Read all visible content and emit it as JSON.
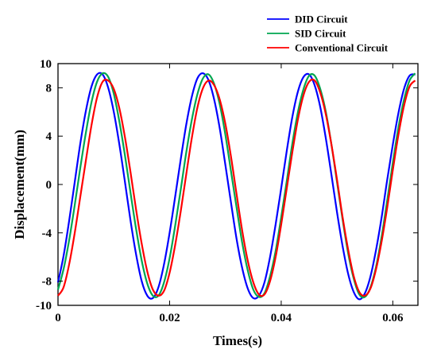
{
  "chart_data": {
    "type": "line",
    "xlabel": "Times(s)",
    "ylabel": "Displacement(mm)",
    "xlim": [
      0,
      0.0645
    ],
    "ylim": [
      -10,
      10
    ],
    "xticks": [
      0,
      0.02,
      0.04,
      0.06
    ],
    "xtick_labels": [
      "0",
      "0.02",
      "0.04",
      "0.06"
    ],
    "yticks": [
      -10,
      -8,
      -4,
      0,
      4,
      8,
      10
    ],
    "ytick_labels": [
      "-10",
      "-8",
      "-4",
      "0",
      "4",
      "8",
      "10"
    ],
    "grid": false,
    "legend_position": "top-right",
    "x": [
      0,
      0.001,
      0.002,
      0.003,
      0.004,
      0.005,
      0.006,
      0.007,
      0.008,
      0.009,
      0.01,
      0.011,
      0.012,
      0.013,
      0.014,
      0.015,
      0.016,
      0.017,
      0.018,
      0.019,
      0.02,
      0.021,
      0.022,
      0.023,
      0.024,
      0.025,
      0.026,
      0.027,
      0.028,
      0.029,
      0.03,
      0.031,
      0.032,
      0.033,
      0.034,
      0.035,
      0.036,
      0.037,
      0.038,
      0.039,
      0.04,
      0.041,
      0.042,
      0.043,
      0.044,
      0.045,
      0.046,
      0.047,
      0.048,
      0.049,
      0.05,
      0.051,
      0.052,
      0.053,
      0.054,
      0.055,
      0.056,
      0.057,
      0.058,
      0.059,
      0.06,
      0.061,
      0.062,
      0.063,
      0.064
    ],
    "series": [
      {
        "name": "DID Circuit",
        "color": "#0000ff",
        "values": [
          -8.1,
          -5.9,
          -3.0,
          0.2,
          3.4,
          6.1,
          8.1,
          9.1,
          9.1,
          8.0,
          6.0,
          3.3,
          0.2,
          -3.0,
          -5.8,
          -8.0,
          -9.2,
          -9.4,
          -8.5,
          -6.6,
          -4.0,
          -1.0,
          2.1,
          5.0,
          7.3,
          8.8,
          9.2,
          8.6,
          7.0,
          4.6,
          1.6,
          -1.5,
          -4.5,
          -6.9,
          -8.6,
          -9.4,
          -9.2,
          -8.1,
          -6.0,
          -3.3,
          -0.3,
          2.8,
          5.6,
          7.7,
          8.9,
          9.1,
          8.2,
          6.4,
          3.8,
          0.8,
          -2.3,
          -5.1,
          -7.4,
          -8.9,
          -9.5,
          -9.0,
          -7.6,
          -5.4,
          -2.7,
          0.4,
          3.3,
          5.9,
          7.9,
          9.0,
          9.1
        ]
      },
      {
        "name": "SID Circuit",
        "color": "#00a650",
        "values": [
          -8.7,
          -7.0,
          -4.6,
          -1.7,
          1.4,
          4.3,
          6.8,
          8.5,
          9.2,
          8.9,
          7.5,
          5.2,
          2.4,
          -0.7,
          -3.7,
          -6.3,
          -8.2,
          -9.2,
          -9.2,
          -8.1,
          -6.1,
          -3.4,
          -0.4,
          2.7,
          5.4,
          7.5,
          8.8,
          9.1,
          8.3,
          6.6,
          4.1,
          1.1,
          -1.9,
          -4.8,
          -7.1,
          -8.7,
          -9.3,
          -9.0,
          -7.6,
          -5.5,
          -2.7,
          0.3,
          3.4,
          6.0,
          7.9,
          9.0,
          9.0,
          7.9,
          6.0,
          3.3,
          0.2,
          -2.9,
          -5.7,
          -7.8,
          -9.1,
          -9.3,
          -8.5,
          -6.8,
          -4.3,
          -1.3,
          1.8,
          4.7,
          7.0,
          8.6,
          9.2
        ]
      },
      {
        "name": "Conventional Circuit",
        "color": "#ff0000",
        "values": [
          -9.2,
          -8.5,
          -6.6,
          -4.0,
          -1.0,
          2.0,
          4.9,
          7.2,
          8.5,
          8.6,
          7.9,
          6.3,
          3.9,
          1.0,
          -2.1,
          -4.9,
          -7.2,
          -8.7,
          -9.2,
          -8.8,
          -7.3,
          -5.0,
          -2.2,
          0.9,
          3.9,
          6.4,
          8.0,
          8.6,
          8.2,
          7.0,
          5.0,
          2.3,
          -0.8,
          -3.8,
          -6.3,
          -8.1,
          -9.1,
          -9.1,
          -8.0,
          -6.0,
          -3.3,
          -0.3,
          2.7,
          5.4,
          7.4,
          8.5,
          8.6,
          7.6,
          5.8,
          3.3,
          0.4,
          -2.7,
          -5.4,
          -7.6,
          -8.9,
          -9.2,
          -8.6,
          -7.0,
          -4.7,
          -1.9,
          1.2,
          4.1,
          6.5,
          8.1,
          8.6
        ]
      }
    ]
  }
}
